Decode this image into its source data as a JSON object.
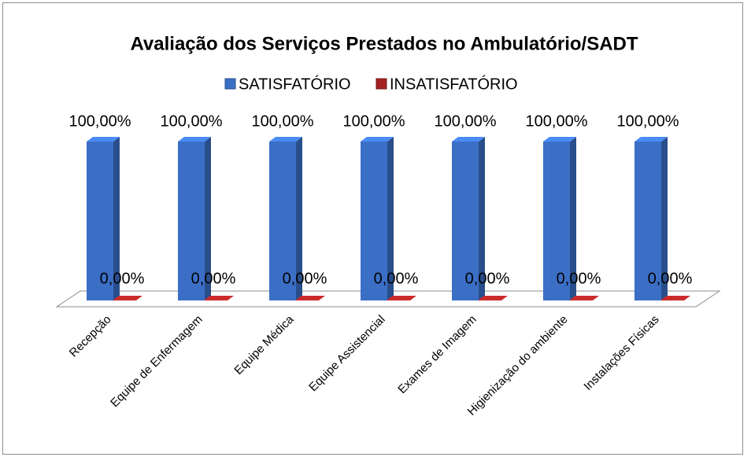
{
  "chart_data": {
    "type": "bar3d",
    "title": "Avaliação dos Serviços Prestados no Ambulatório/SADT",
    "categories": [
      "Recepção",
      "Equipe de Enfermagem",
      "Equipe Médica",
      "Equipe Assistencial",
      "Exames de Imagem",
      "Higienização do ambiente",
      "Instalações Físicas"
    ],
    "series": [
      {
        "name": "SATISFATÓRIO",
        "color": "#3b6fc6",
        "values": [
          100,
          100,
          100,
          100,
          100,
          100,
          100
        ],
        "value_labels": [
          "100,00%",
          "100,00%",
          "100,00%",
          "100,00%",
          "100,00%",
          "100,00%",
          "100,00%"
        ]
      },
      {
        "name": "INSATISFATÓRIO",
        "color": "#a32222",
        "values": [
          0,
          0,
          0,
          0,
          0,
          0,
          0
        ],
        "value_labels": [
          "0,00%",
          "0,00%",
          "0,00%",
          "0,00%",
          "0,00%",
          "0,00%",
          "0,00%"
        ]
      }
    ],
    "legend": "top"
  }
}
